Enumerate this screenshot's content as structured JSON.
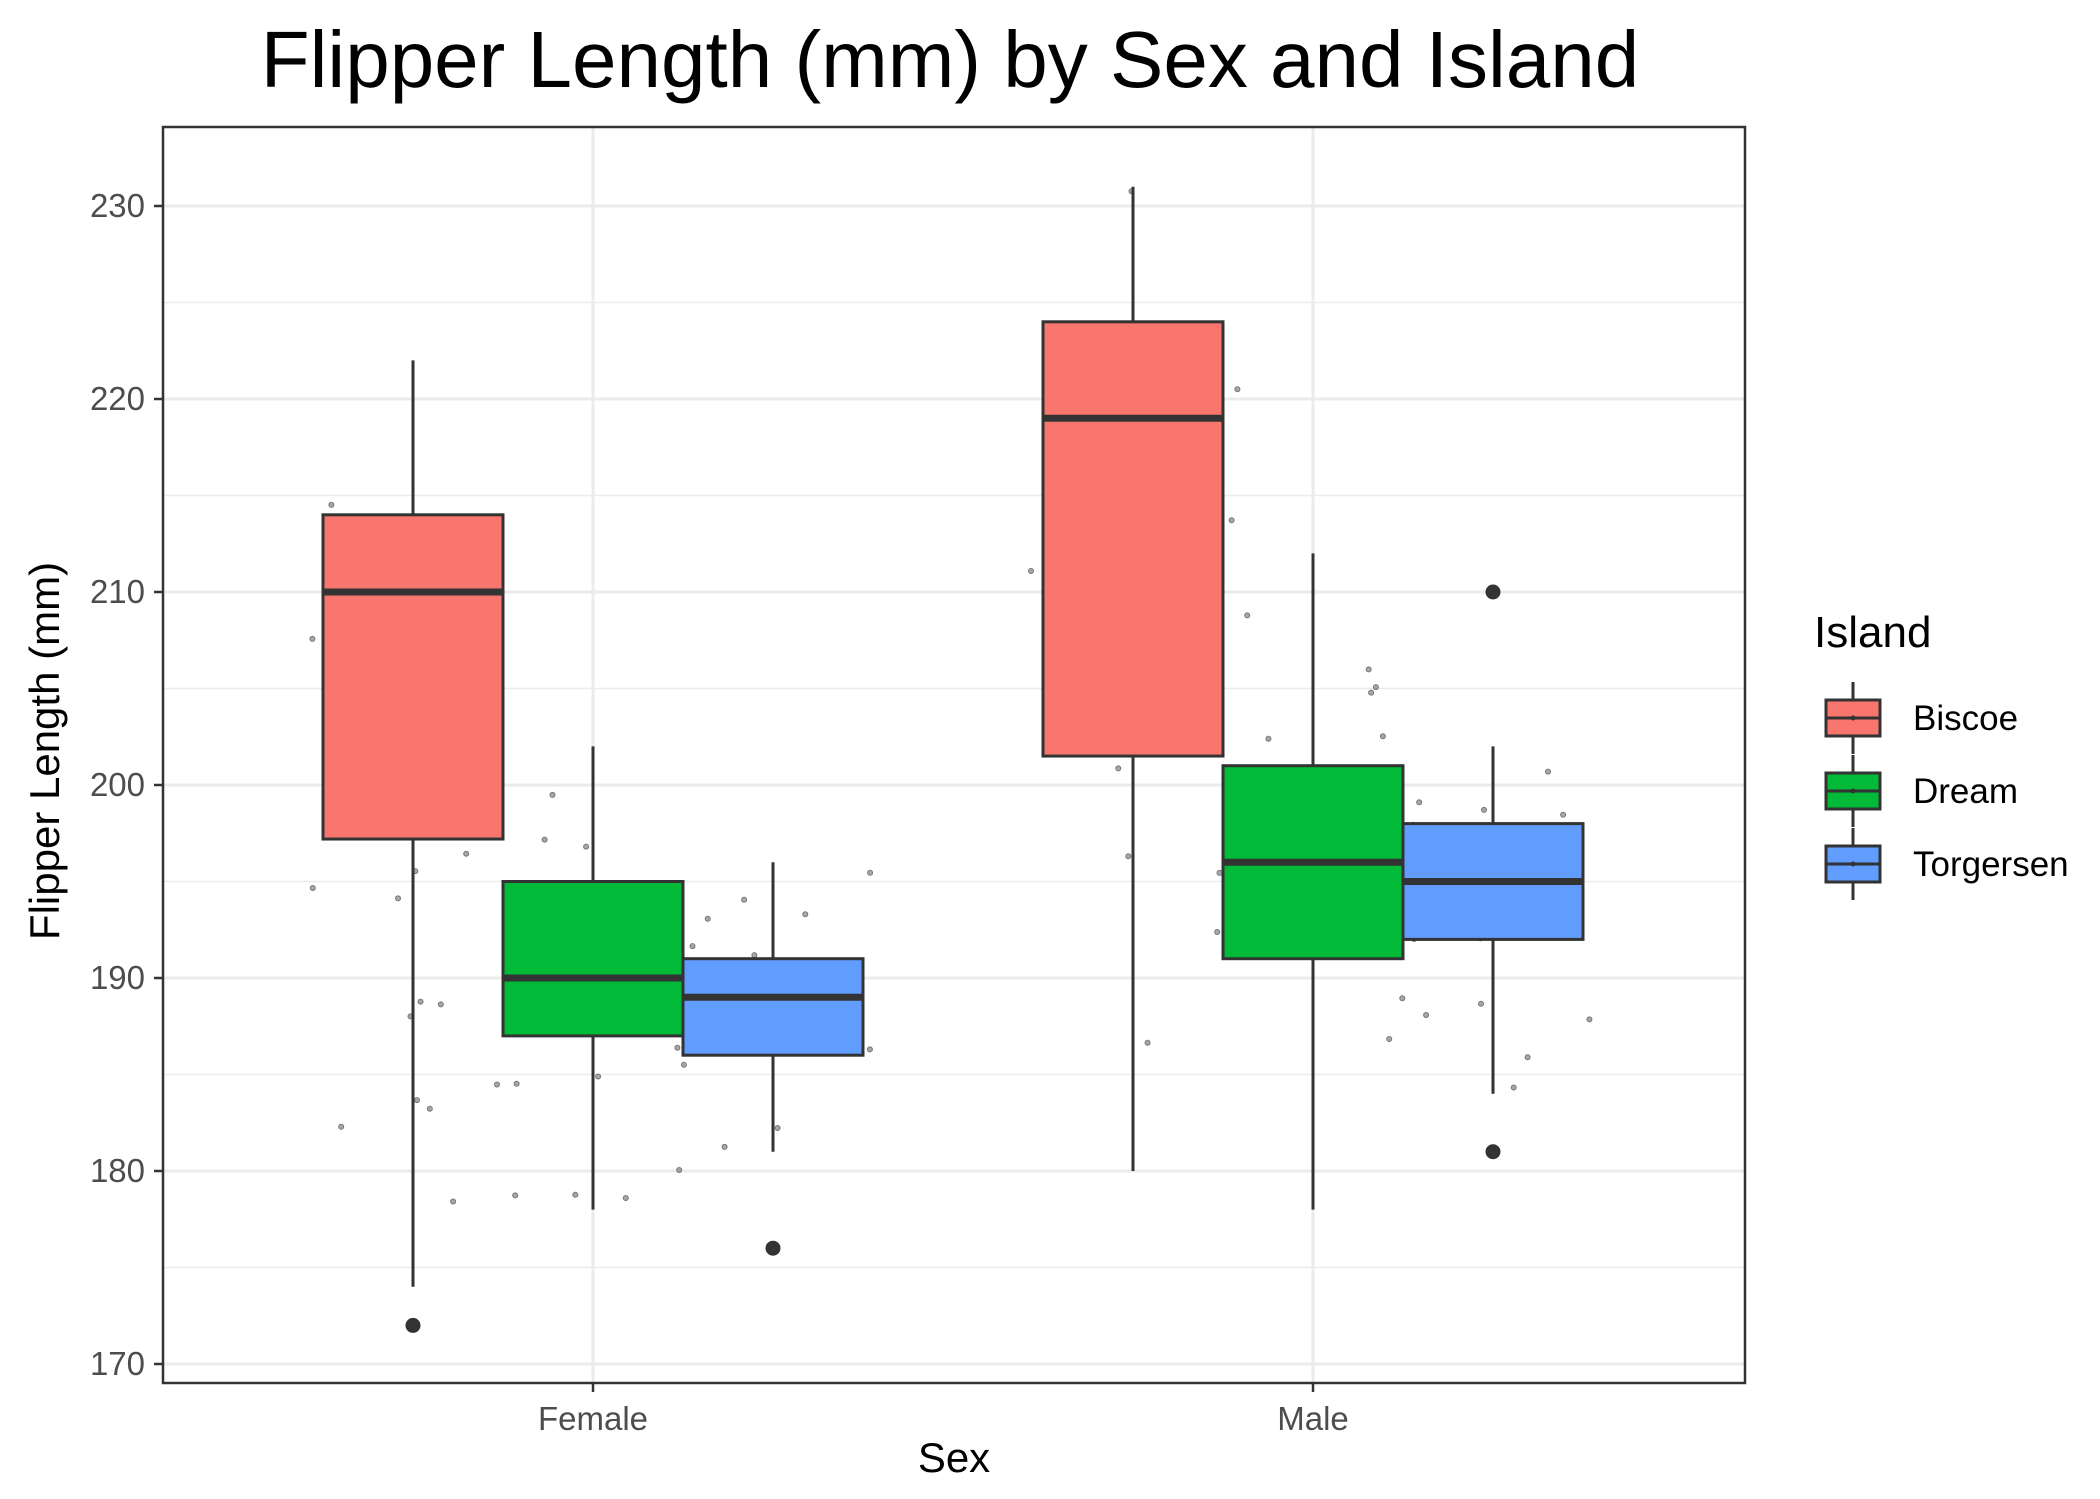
{
  "chart_data": {
    "type": "box",
    "title": "Flipper Length (mm) by Sex and Island",
    "xlabel": "Sex",
    "ylabel": "Flipper Length (mm)",
    "categories": [
      "Female",
      "Male"
    ],
    "ylim": [
      169,
      234
    ],
    "yticks": [
      170,
      180,
      190,
      200,
      210,
      220,
      230
    ],
    "grid": true,
    "legend": {
      "title": "Island",
      "position": "right"
    },
    "series": [
      {
        "name": "Biscoe",
        "color": "#F8766D",
        "boxes": [
          {
            "category": "Female",
            "whisker_low": 174,
            "q1": 197.2,
            "median": 210,
            "q3": 214,
            "whisker_high": 222,
            "outliers": [
              172
            ]
          },
          {
            "category": "Male",
            "whisker_low": 180,
            "q1": 201.5,
            "median": 219,
            "q3": 224,
            "whisker_high": 231,
            "outliers": []
          }
        ]
      },
      {
        "name": "Dream",
        "color": "#00BA38",
        "boxes": [
          {
            "category": "Female",
            "whisker_low": 178,
            "q1": 187,
            "median": 190,
            "q3": 195,
            "whisker_high": 202,
            "outliers": []
          },
          {
            "category": "Male",
            "whisker_low": 178,
            "q1": 191,
            "median": 196,
            "q3": 201,
            "whisker_high": 212,
            "outliers": []
          }
        ]
      },
      {
        "name": "Torgersen",
        "color": "#619CFF",
        "boxes": [
          {
            "category": "Female",
            "whisker_low": 181,
            "q1": 186,
            "median": 189,
            "q3": 191,
            "whisker_high": 196,
            "outliers": [
              176
            ]
          },
          {
            "category": "Male",
            "whisker_low": 184,
            "q1": 192,
            "median": 195,
            "q3": 198,
            "whisker_high": 202,
            "outliers": [
              210,
              181
            ]
          }
        ]
      }
    ]
  }
}
